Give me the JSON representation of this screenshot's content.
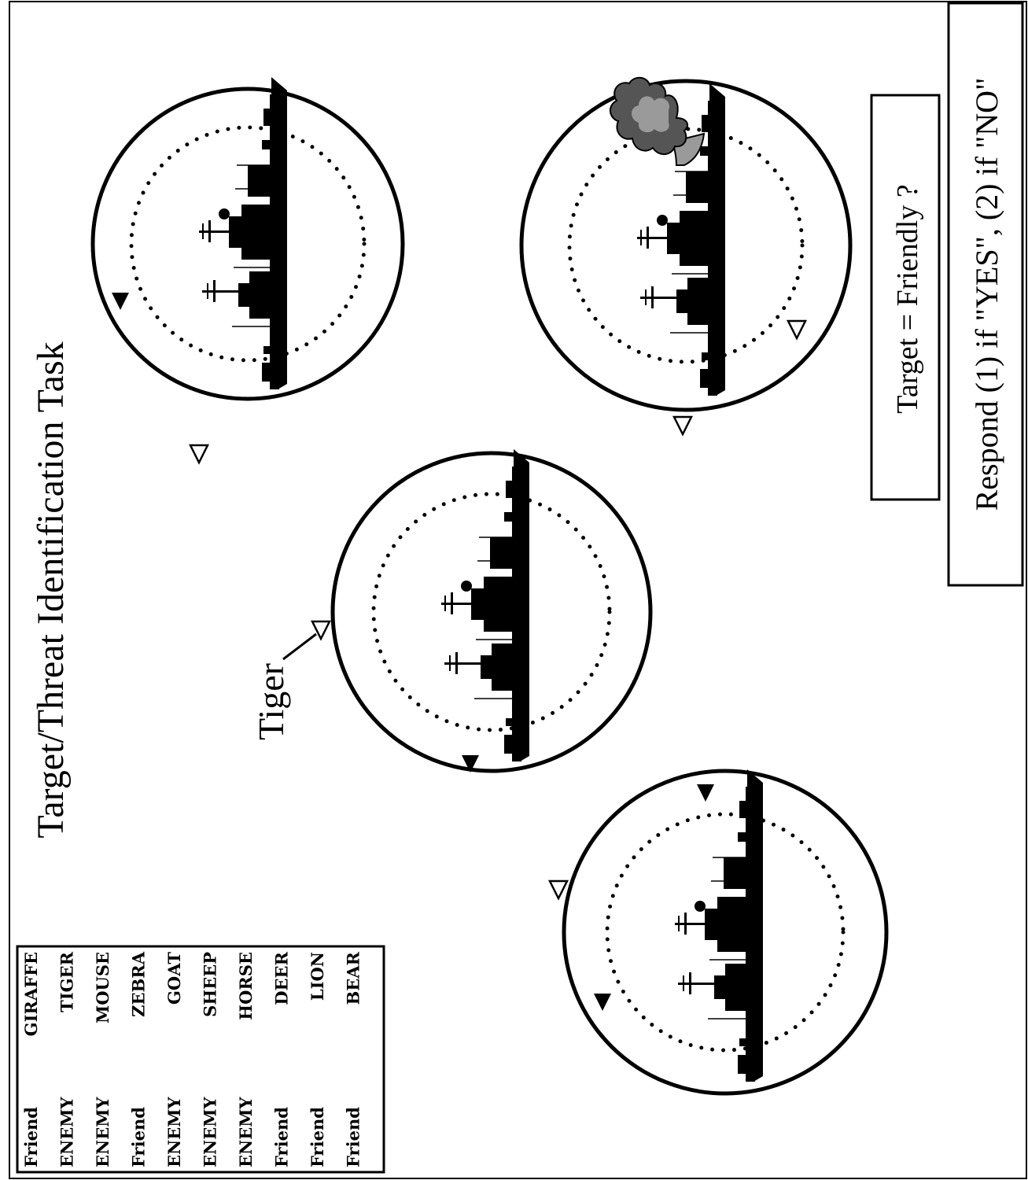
{
  "title": "Target/Threat Identification Task",
  "callout_label": "Tiger",
  "question": "Target = Friendly ?",
  "instruction": "Respond (1) if \"YES\", (2) if \"NO\"",
  "legend": [
    {
      "status": "Friend",
      "name": "GIRAFFE"
    },
    {
      "status": "ENEMY",
      "name": "TIGER"
    },
    {
      "status": "ENEMY",
      "name": "MOUSE"
    },
    {
      "status": "Friend",
      "name": "ZEBRA"
    },
    {
      "status": "ENEMY",
      "name": "GOAT"
    },
    {
      "status": "ENEMY",
      "name": "SHEEP"
    },
    {
      "status": "ENEMY",
      "name": "HORSE"
    },
    {
      "status": "Friend",
      "name": "DEER"
    },
    {
      "status": "Friend",
      "name": "LION"
    },
    {
      "status": "Friend",
      "name": "BEAR"
    }
  ],
  "colors": {
    "ink": "#000000",
    "paper": "#ffffff",
    "smoke": "#8a8a8a"
  },
  "icons": [
    "ship-silhouette-icon",
    "filled-triangle-icon",
    "open-triangle-icon",
    "explosion-cloud-icon"
  ]
}
